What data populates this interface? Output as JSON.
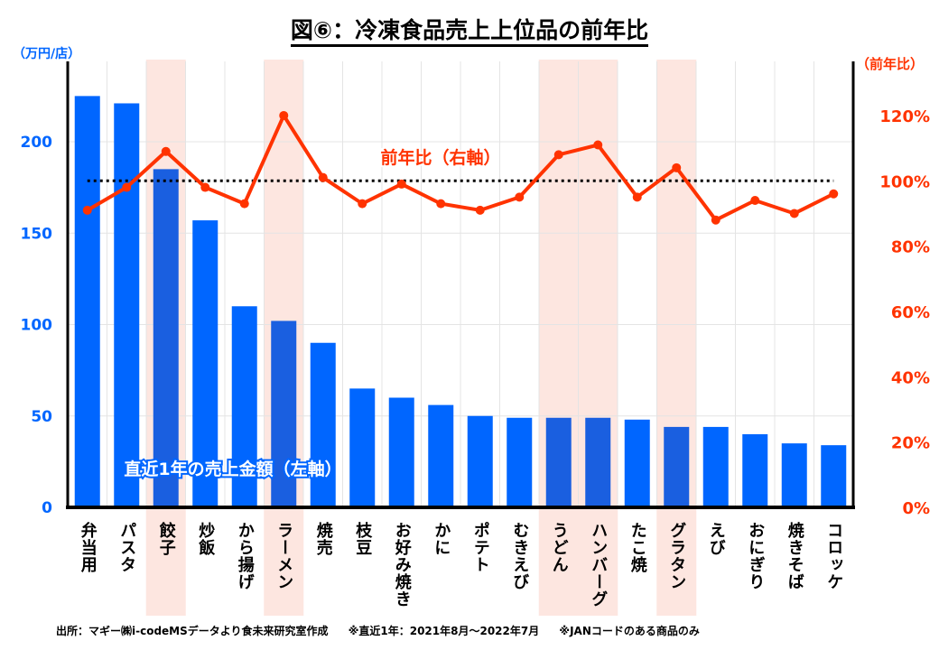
{
  "title": "図⑥：冷凍食品売上上位品の前年比",
  "footer": [
    "出所：マギー㈱i-codeMSデータより食未来研究室作成",
    "※直近1年：2021年8月〜2022年7月",
    "※JANコードのある商品のみ"
  ],
  "colors": {
    "bar": "#0066ff",
    "bar_highlight": "#1a5fe0",
    "line": "#ff3300",
    "highlight_bg": "#fde6e0",
    "left_axis": "#0066ff",
    "right_axis": "#ff3300"
  },
  "chart_data": {
    "type": "bar+line",
    "title": "図⑥：冷凍食品売上上位品の前年比",
    "categories": [
      "弁当用",
      "パスタ",
      "餃子",
      "炒飯",
      "から揚げ",
      "ラーメン",
      "焼売",
      "枝豆",
      "お好み焼き",
      "かに",
      "ポテト",
      "むきえび",
      "うどん",
      "ハンバーグ",
      "たこ焼",
      "グラタン",
      "えび",
      "おにぎり",
      "焼きそば",
      "コロッケ"
    ],
    "highlighted": [
      "餃子",
      "ラーメン",
      "うどん",
      "ハンバーグ",
      "グラタン"
    ],
    "series": [
      {
        "name": "直近1年の売上金額（左軸）",
        "axis": "left",
        "type": "bar",
        "values": [
          225,
          221,
          185,
          157,
          110,
          102,
          90,
          65,
          60,
          56,
          50,
          49,
          49,
          49,
          48,
          44,
          44,
          40,
          35,
          34
        ]
      },
      {
        "name": "前年比（右軸）",
        "axis": "right",
        "type": "line",
        "values": [
          91,
          98,
          109,
          98,
          93,
          120,
          101,
          93,
          99,
          93,
          91,
          95,
          108,
          111,
          95,
          104,
          88,
          94,
          90,
          96
        ]
      }
    ],
    "left_axis": {
      "label": "（万円/店）",
      "ylim": [
        0,
        240
      ],
      "ticks": [
        0,
        50,
        100,
        150,
        200
      ]
    },
    "right_axis": {
      "label": "（前年比）",
      "ylim": [
        0,
        132
      ],
      "ticks": [
        "0%",
        "20%",
        "40%",
        "60%",
        "80%",
        "100%",
        "120%"
      ],
      "tick_values": [
        0,
        20,
        40,
        60,
        80,
        100,
        120
      ]
    },
    "reference_line": 100,
    "grid": true
  }
}
